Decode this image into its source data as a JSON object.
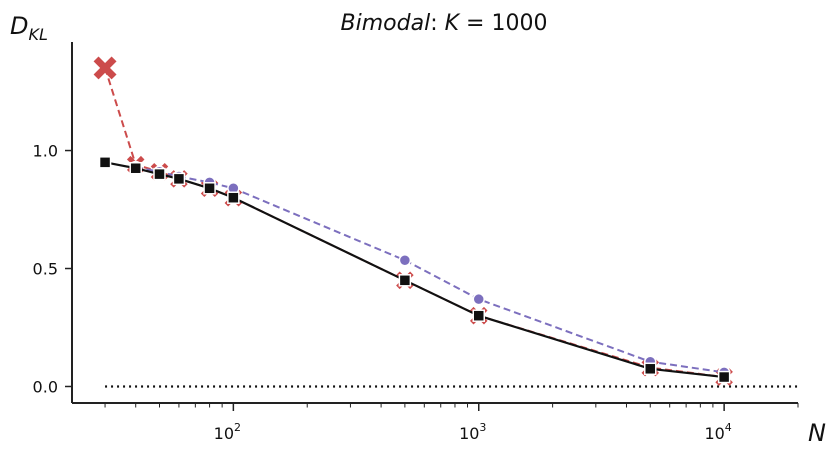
{
  "chart_data": {
    "type": "line",
    "title_parts": [
      "Bimodal",
      ":  ",
      "K",
      " = 1000"
    ],
    "ylabel_main": "D",
    "ylabel_sub": "KL",
    "xlabel": "N",
    "x_scale": "log",
    "xlim": [
      22,
      20000
    ],
    "ylim": [
      -0.07,
      1.46
    ],
    "y_ticks": [
      {
        "value": 0.0,
        "label": "0.0"
      },
      {
        "value": 0.5,
        "label": "0.5"
      },
      {
        "value": 1.0,
        "label": "1.0"
      }
    ],
    "x_ticks": [
      {
        "value": 100,
        "base": "10",
        "exp": "2"
      },
      {
        "value": 1000,
        "base": "10",
        "exp": "3"
      },
      {
        "value": 10000,
        "base": "10",
        "exp": "4"
      }
    ],
    "grid": false,
    "legend": "none",
    "series": [
      {
        "marker": "x",
        "line": "dashed",
        "color": "#cc4b4b",
        "x": [
          30,
          40,
          50,
          60,
          80,
          100,
          500,
          1000,
          5000,
          10000
        ],
        "y": [
          1.35,
          0.94,
          0.91,
          0.88,
          0.84,
          0.8,
          0.45,
          0.3,
          0.08,
          0.04
        ]
      },
      {
        "marker": "circle",
        "line": "dashed",
        "color": "#7c6fbe",
        "x": [
          40,
          50,
          60,
          80,
          100,
          500,
          1000,
          5000,
          10000
        ],
        "y": [
          0.93,
          0.91,
          0.89,
          0.865,
          0.84,
          0.535,
          0.37,
          0.105,
          0.06
        ]
      },
      {
        "marker": "square",
        "line": "solid",
        "color": "#111111",
        "x": [
          30,
          40,
          50,
          60,
          80,
          100,
          500,
          1000,
          5000,
          10000
        ],
        "y": [
          0.95,
          0.925,
          0.9,
          0.88,
          0.84,
          0.8,
          0.45,
          0.3,
          0.075,
          0.04
        ]
      }
    ],
    "reference_line": {
      "y": 0.0,
      "x": [
        30,
        20000
      ],
      "line": "dotted",
      "color": "#111111"
    }
  }
}
